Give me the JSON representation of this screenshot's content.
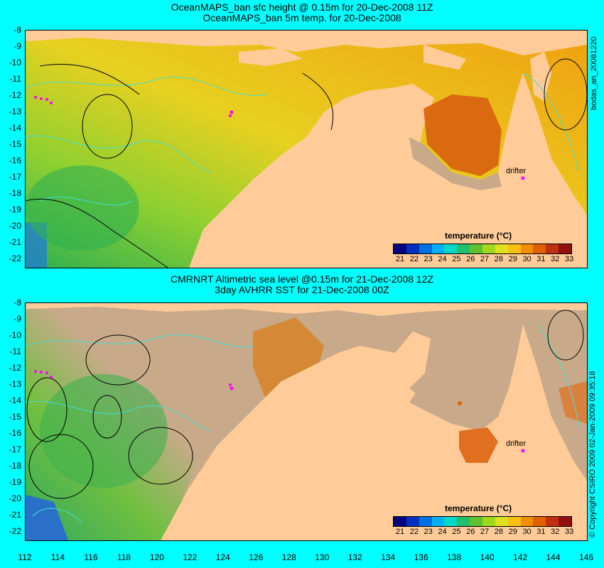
{
  "top": {
    "title1": "OceanMAPS_ban sfc height @ 0.15m for 20-Dec-2008 11Z",
    "title2": "OceanMAPS_ban 5m temp. for 20-Dec-2008",
    "side_label": "bodas_an_20081220"
  },
  "bottom": {
    "title1": "CMRNRT Altimetric sea level  @0.15m  for 21-Dec-2008 12Z",
    "title2": "3day AVHRR SST for 21-Dec-2008 00Z",
    "side_label": "© Copyright CSIRO 2009  02-Jan-2009 09:35:18"
  },
  "y_ticks": [
    "-8",
    "-9",
    "-10",
    "-11",
    "-12",
    "-13",
    "-14",
    "-15",
    "-16",
    "-17",
    "-18",
    "-19",
    "-20",
    "-21",
    "-22"
  ],
  "x_ticks": [
    "112",
    "114",
    "116",
    "118",
    "120",
    "122",
    "124",
    "126",
    "128",
    "130",
    "132",
    "134",
    "136",
    "138",
    "140",
    "142",
    "144",
    "146"
  ],
  "colorbar": {
    "title": "temperature (°C)",
    "labels": [
      "21",
      "22",
      "23",
      "24",
      "25",
      "26",
      "27",
      "28",
      "29",
      "30",
      "31",
      "32",
      "33"
    ],
    "colors": [
      "#000080",
      "#0030c0",
      "#0070e0",
      "#00b0f0",
      "#00d8c8",
      "#20c070",
      "#60c030",
      "#a0d820",
      "#e0e020",
      "#f8c010",
      "#f09000",
      "#e06000",
      "#c03010",
      "#901010"
    ]
  },
  "drifter_label": "drifter",
  "colors": {
    "background": "#00ffff",
    "land": "#ffcc99",
    "no_data": "#c8aa8a",
    "contour_cyan": "#40e0d0",
    "contour_black": "#000000",
    "drifter": "#ff00ff"
  }
}
